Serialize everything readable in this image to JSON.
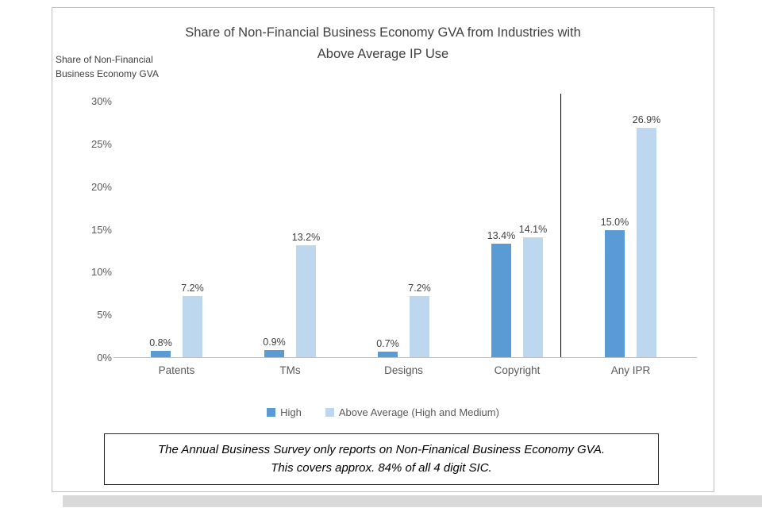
{
  "chart_data": {
    "type": "bar",
    "title_line1": "Share of Non-Financial Business Economy GVA from Industries with",
    "title_line2": "Above Average IP Use",
    "y_axis_label_line1": "Share of Non-Financial",
    "y_axis_label_line2": "Business Economy GVA",
    "categories": [
      "Patents",
      "TMs",
      "Designs",
      "Copyright",
      "Any IPR"
    ],
    "series": [
      {
        "name": "High",
        "color": "#5b9bd5",
        "values": [
          0.8,
          0.9,
          0.7,
          13.4,
          15.0
        ],
        "labels": [
          "0.8%",
          "0.9%",
          "0.7%",
          "13.4%",
          "15.0%"
        ]
      },
      {
        "name": "Above Average (High and Medium)",
        "color": "#bdd7ee",
        "values": [
          7.2,
          13.2,
          7.2,
          14.1,
          26.9
        ],
        "labels": [
          "7.2%",
          "13.2%",
          "7.2%",
          "14.1%",
          "26.9%"
        ]
      }
    ],
    "y_ticks": [
      "30%",
      "25%",
      "20%",
      "15%",
      "10%",
      "5%",
      "0%"
    ],
    "ylim": [
      0,
      30
    ],
    "grid": "off",
    "legend_position": "bottom",
    "separator_before_category": "Any IPR"
  },
  "footnote": {
    "line1": "The Annual Business Survey only reports on Non-Finanical Business Economy GVA.",
    "line2": "This covers approx. 84% of all 4 digit SIC."
  }
}
